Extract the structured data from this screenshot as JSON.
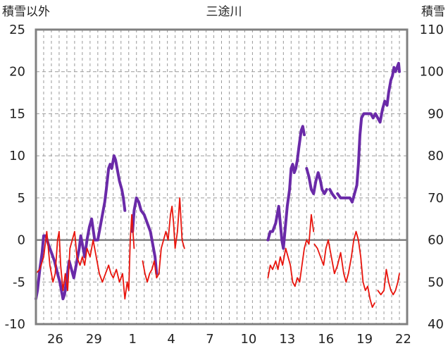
{
  "chart_data": {
    "type": "line",
    "title": "三途川",
    "left_axis": {
      "label": "積雪以外",
      "ylim": [
        -10,
        25
      ],
      "ticks": [
        25,
        20,
        15,
        10,
        5,
        0,
        -5,
        -10
      ]
    },
    "right_axis": {
      "label": "積雪",
      "ylim": [
        40,
        110
      ],
      "ticks": [
        110,
        100,
        90,
        80,
        70,
        60,
        50,
        40
      ]
    },
    "x_tick_labels": [
      "26",
      "29",
      "1",
      "4",
      "7",
      "10",
      "13",
      "16",
      "19",
      "22"
    ],
    "grid": true,
    "series": [
      {
        "color": "#6a2aa8",
        "axis": "right",
        "segments": [
          [
            [
              0,
              46
            ],
            [
              0.2,
              48
            ],
            [
              0.5,
              53
            ],
            [
              0.8,
              57
            ],
            [
              1.0,
              61
            ],
            [
              1.3,
              61
            ],
            [
              1.6,
              59
            ],
            [
              2.0,
              57
            ],
            [
              2.4,
              55
            ],
            [
              2.8,
              52
            ],
            [
              3.1,
              50
            ],
            [
              3.3,
              48
            ],
            [
              3.5,
              46
            ],
            [
              3.7,
              47
            ],
            [
              4.0,
              51
            ],
            [
              4.3,
              55
            ],
            [
              4.6,
              53
            ],
            [
              4.9,
              51
            ],
            [
              5.1,
              53
            ],
            [
              5.3,
              55
            ],
            [
              5.6,
              58
            ],
            [
              5.8,
              61
            ],
            [
              6.0,
              59
            ],
            [
              6.3,
              56
            ],
            [
              6.6,
              60
            ],
            [
              6.9,
              63
            ],
            [
              7.2,
              65
            ],
            [
              7.6,
              60
            ],
            [
              8.0,
              60
            ],
            [
              8.3,
              63
            ],
            [
              8.6,
              66
            ],
            [
              8.9,
              69
            ],
            [
              9.1,
              72
            ],
            [
              9.4,
              77
            ],
            [
              9.6,
              78
            ],
            [
              9.8,
              77
            ],
            [
              10.1,
              80
            ],
            [
              10.3,
              79
            ],
            [
              10.5,
              77
            ],
            [
              10.8,
              74
            ],
            [
              11.1,
              72
            ],
            [
              11.3,
              70
            ],
            [
              11.5,
              67
            ]
          ],
          [
            [
              12.5,
              62
            ],
            [
              12.7,
              67
            ],
            [
              13.0,
              70
            ],
            [
              13.3,
              69
            ],
            [
              13.6,
              67
            ],
            [
              14.0,
              66
            ],
            [
              14.4,
              64
            ],
            [
              14.8,
              62
            ],
            [
              15.1,
              59
            ],
            [
              15.4,
              56
            ],
            [
              15.6,
              52
            ]
          ],
          [
            [
              30.0,
              60
            ],
            [
              30.3,
              62
            ],
            [
              30.6,
              62
            ],
            [
              31.0,
              64
            ],
            [
              31.4,
              68
            ],
            [
              31.6,
              64
            ],
            [
              31.8,
              60
            ],
            [
              32.0,
              58
            ],
            [
              32.2,
              62
            ],
            [
              32.5,
              68
            ],
            [
              32.8,
              72
            ],
            [
              33.0,
              77
            ],
            [
              33.2,
              78
            ],
            [
              33.4,
              76
            ],
            [
              33.6,
              77
            ],
            [
              33.8,
              79
            ],
            [
              34.0,
              82
            ],
            [
              34.3,
              86
            ],
            [
              34.5,
              87
            ],
            [
              34.7,
              85
            ]
          ],
          [
            [
              35.0,
              77
            ],
            [
              35.3,
              75
            ],
            [
              35.6,
              72
            ],
            [
              35.9,
              71
            ],
            [
              36.2,
              74
            ],
            [
              36.5,
              76
            ],
            [
              36.8,
              74
            ],
            [
              37.0,
              72
            ],
            [
              37.3,
              71
            ],
            [
              37.6,
              72
            ]
          ],
          [
            [
              38.0,
              72
            ],
            [
              38.3,
              71
            ],
            [
              38.7,
              70
            ]
          ],
          [
            [
              39.0,
              71
            ],
            [
              39.4,
              70
            ],
            [
              39.8,
              70
            ],
            [
              40.2,
              70
            ],
            [
              40.6,
              70
            ],
            [
              40.9,
              69
            ],
            [
              41.2,
              71
            ],
            [
              41.5,
              73
            ],
            [
              41.7,
              78
            ],
            [
              41.9,
              85
            ],
            [
              42.1,
              89
            ],
            [
              42.4,
              90
            ],
            [
              42.7,
              90
            ],
            [
              43.0,
              90
            ],
            [
              43.3,
              90
            ],
            [
              43.6,
              89
            ],
            [
              43.9,
              90
            ],
            [
              44.2,
              89
            ],
            [
              44.5,
              88
            ],
            [
              44.8,
              91
            ],
            [
              45.1,
              93
            ],
            [
              45.4,
              92
            ],
            [
              45.6,
              95
            ],
            [
              45.9,
              98
            ],
            [
              46.1,
              99
            ],
            [
              46.3,
              101
            ],
            [
              46.5,
              100
            ],
            [
              46.7,
              101
            ],
            [
              46.9,
              102
            ],
            [
              47.0,
              100
            ]
          ]
        ]
      },
      {
        "color": "#e8140c",
        "axis": "left",
        "segments": [
          [
            [
              0,
              -4
            ],
            [
              0.5,
              -3.5
            ],
            [
              1.0,
              -2
            ],
            [
              1.4,
              1
            ],
            [
              1.8,
              -3
            ],
            [
              2.2,
              -5
            ],
            [
              2.5,
              -4
            ],
            [
              2.8,
              0
            ],
            [
              3.0,
              1
            ],
            [
              3.2,
              -3
            ],
            [
              3.5,
              -6
            ],
            [
              3.8,
              -4
            ],
            [
              4.1,
              -6
            ],
            [
              4.4,
              -1
            ],
            [
              4.7,
              0
            ],
            [
              5.0,
              1
            ],
            [
              5.3,
              -2
            ],
            [
              5.7,
              -3
            ],
            [
              6.0,
              -2
            ],
            [
              6.3,
              -3
            ],
            [
              6.6,
              -1
            ],
            [
              7.0,
              -2
            ],
            [
              7.4,
              0
            ],
            [
              7.8,
              -2
            ],
            [
              8.2,
              -4
            ],
            [
              8.6,
              -5
            ],
            [
              9.0,
              -4
            ],
            [
              9.4,
              -3
            ],
            [
              9.7,
              -4
            ],
            [
              10.0,
              -4.5
            ],
            [
              10.4,
              -3.5
            ],
            [
              10.8,
              -5
            ],
            [
              11.2,
              -4
            ],
            [
              11.5,
              -7
            ],
            [
              11.8,
              -5
            ],
            [
              12.0,
              -6
            ],
            [
              12.2,
              0
            ],
            [
              12.4,
              3
            ],
            [
              12.7,
              -1
            ]
          ],
          [
            [
              13.8,
              -2.5
            ],
            [
              14.1,
              -4
            ],
            [
              14.4,
              -5
            ],
            [
              14.7,
              -4
            ],
            [
              15.0,
              -3.5
            ],
            [
              15.3,
              -2.5
            ],
            [
              15.6,
              -4.5
            ],
            [
              15.9,
              -4
            ],
            [
              16.2,
              -1
            ],
            [
              16.5,
              0
            ],
            [
              16.8,
              1
            ],
            [
              17.1,
              0
            ],
            [
              17.4,
              3
            ],
            [
              17.6,
              4
            ],
            [
              17.8,
              2
            ],
            [
              18.0,
              -1
            ],
            [
              18.3,
              1
            ],
            [
              18.6,
              5
            ],
            [
              18.9,
              0
            ],
            [
              19.2,
              -1
            ]
          ],
          [
            [
              30.0,
              -4.5
            ],
            [
              30.3,
              -3
            ],
            [
              30.6,
              -3.5
            ],
            [
              31.0,
              -2.5
            ],
            [
              31.3,
              -3.5
            ],
            [
              31.6,
              -2
            ],
            [
              31.9,
              -3
            ],
            [
              32.3,
              -1
            ],
            [
              32.6,
              -2
            ],
            [
              32.9,
              -3
            ],
            [
              33.2,
              -5
            ],
            [
              33.5,
              -5.5
            ],
            [
              33.8,
              -4.5
            ],
            [
              34.1,
              -5
            ],
            [
              34.4,
              -3
            ],
            [
              34.7,
              -1
            ],
            [
              35.0,
              0
            ],
            [
              35.3,
              -0.5
            ],
            [
              35.6,
              3
            ],
            [
              35.9,
              1
            ]
          ],
          [
            [
              36.0,
              -0.5
            ],
            [
              36.4,
              -1
            ],
            [
              36.8,
              -2
            ],
            [
              37.2,
              -3
            ],
            [
              37.5,
              -1
            ],
            [
              37.8,
              0
            ],
            [
              38.2,
              -2
            ],
            [
              38.6,
              -4
            ],
            [
              39.0,
              -3
            ],
            [
              39.4,
              -1.5
            ],
            [
              39.8,
              -4
            ],
            [
              40.1,
              -5
            ],
            [
              40.4,
              -4
            ],
            [
              40.8,
              -2
            ],
            [
              41.1,
              0
            ],
            [
              41.4,
              1
            ],
            [
              41.7,
              0
            ],
            [
              42.0,
              -2
            ],
            [
              42.3,
              -5
            ],
            [
              42.6,
              -6
            ],
            [
              42.9,
              -5.5
            ],
            [
              43.2,
              -7
            ],
            [
              43.5,
              -8
            ],
            [
              43.8,
              -7.5
            ]
          ],
          [
            [
              44.2,
              -6
            ],
            [
              44.6,
              -6.5
            ],
            [
              45.0,
              -6
            ],
            [
              45.3,
              -3.5
            ],
            [
              45.6,
              -5
            ],
            [
              45.9,
              -6
            ],
            [
              46.2,
              -6.5
            ],
            [
              46.5,
              -6
            ],
            [
              46.8,
              -5
            ],
            [
              47.0,
              -4
            ]
          ]
        ]
      }
    ]
  }
}
